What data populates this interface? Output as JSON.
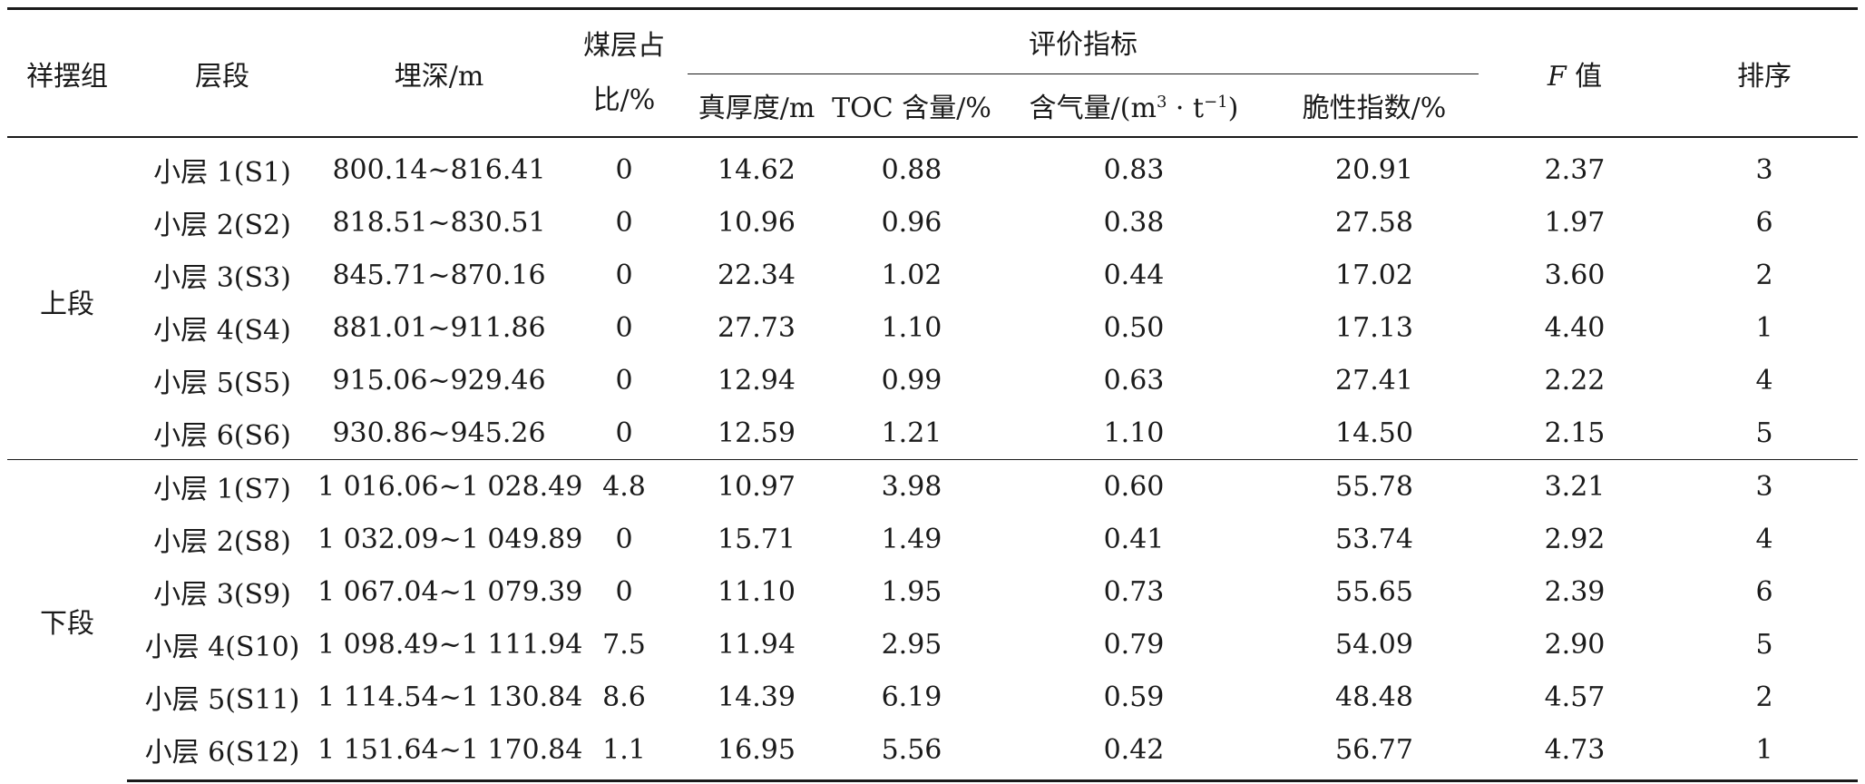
{
  "header": {
    "group": "祥摆组",
    "layer": "层段",
    "depth": "埋深/m",
    "coal_ratio_line1": "煤层占",
    "coal_ratio_line2": "比/%",
    "indicators": "评价指标",
    "thickness": "真厚度/m",
    "toc": "TOC 含量/%",
    "gas_prefix": "含气量/(m",
    "gas_sup1": "3",
    "gas_mid": " · t",
    "gas_sup2": "−1",
    "gas_suffix": ")",
    "brittle": "脆性指数/%",
    "f_letter": "F",
    "f_suffix": " 值",
    "rank": "排序"
  },
  "groups": [
    {
      "name": "上段",
      "rows": [
        {
          "layer": "小层 1(S1)",
          "depth": "800.14~816.41",
          "coal": "0",
          "thick": "14.62",
          "toc": "0.88",
          "gas": "0.83",
          "brittle": "20.91",
          "f": "2.37",
          "rank": "3"
        },
        {
          "layer": "小层 2(S2)",
          "depth": "818.51~830.51",
          "coal": "0",
          "thick": "10.96",
          "toc": "0.96",
          "gas": "0.38",
          "brittle": "27.58",
          "f": "1.97",
          "rank": "6"
        },
        {
          "layer": "小层 3(S3)",
          "depth": "845.71~870.16",
          "coal": "0",
          "thick": "22.34",
          "toc": "1.02",
          "gas": "0.44",
          "brittle": "17.02",
          "f": "3.60",
          "rank": "2"
        },
        {
          "layer": "小层 4(S4)",
          "depth": "881.01~911.86",
          "coal": "0",
          "thick": "27.73",
          "toc": "1.10",
          "gas": "0.50",
          "brittle": "17.13",
          "f": "4.40",
          "rank": "1"
        },
        {
          "layer": "小层 5(S5)",
          "depth": "915.06~929.46",
          "coal": "0",
          "thick": "12.94",
          "toc": "0.99",
          "gas": "0.63",
          "brittle": "27.41",
          "f": "2.22",
          "rank": "4"
        },
        {
          "layer": "小层 6(S6)",
          "depth": "930.86~945.26",
          "coal": "0",
          "thick": "12.59",
          "toc": "1.21",
          "gas": "1.10",
          "brittle": "14.50",
          "f": "2.15",
          "rank": "5"
        }
      ]
    },
    {
      "name": "下段",
      "rows": [
        {
          "layer": "小层 1(S7)",
          "depth": "1 016.06~1 028.49",
          "coal": "4.8",
          "thick": "10.97",
          "toc": "3.98",
          "gas": "0.60",
          "brittle": "55.78",
          "f": "3.21",
          "rank": "3"
        },
        {
          "layer": "小层 2(S8)",
          "depth": "1 032.09~1 049.89",
          "coal": "0",
          "thick": "15.71",
          "toc": "1.49",
          "gas": "0.41",
          "brittle": "53.74",
          "f": "2.92",
          "rank": "4"
        },
        {
          "layer": "小层 3(S9)",
          "depth": "1 067.04~1 079.39",
          "coal": "0",
          "thick": "11.10",
          "toc": "1.95",
          "gas": "0.73",
          "brittle": "55.65",
          "f": "2.39",
          "rank": "6"
        },
        {
          "layer": "小层 4(S10)",
          "depth": "1 098.49~1 111.94",
          "coal": "7.5",
          "thick": "11.94",
          "toc": "2.95",
          "gas": "0.79",
          "brittle": "54.09",
          "f": "2.90",
          "rank": "5"
        },
        {
          "layer": "小层 5(S11)",
          "depth": "1 114.54~1 130.84",
          "coal": "8.6",
          "thick": "14.39",
          "toc": "6.19",
          "gas": "0.59",
          "brittle": "48.48",
          "f": "4.57",
          "rank": "2"
        },
        {
          "layer": "小层 6(S12)",
          "depth": "1 151.64~1 170.84",
          "coal": "1.1",
          "thick": "16.95",
          "toc": "5.56",
          "gas": "0.42",
          "brittle": "56.77",
          "f": "4.73",
          "rank": "1"
        }
      ]
    }
  ]
}
